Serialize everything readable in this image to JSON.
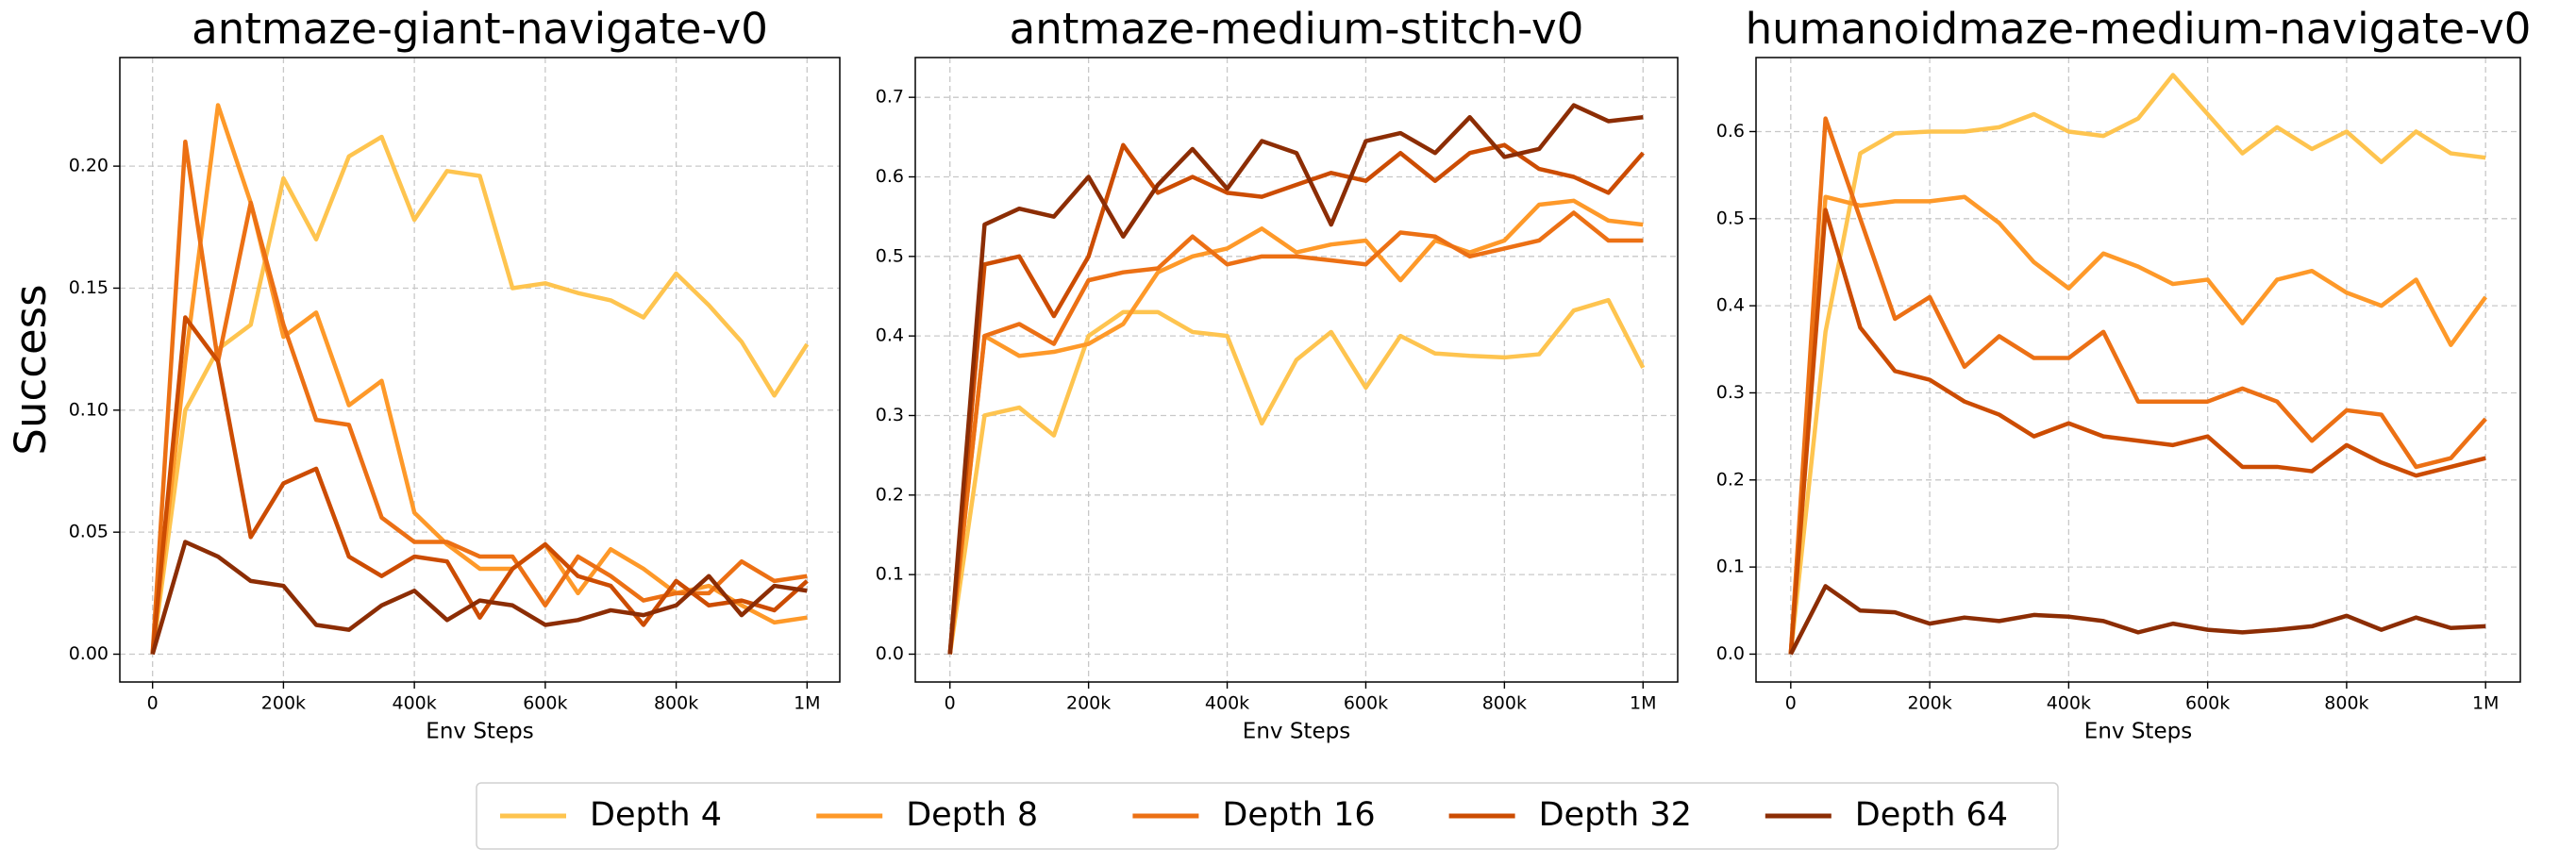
{
  "chart_data": [
    {
      "type": "line",
      "title": "antmaze-giant-navigate-v0",
      "xlabel": "Env Steps",
      "ylabel": "Success",
      "x": [
        0,
        50000,
        100000,
        150000,
        200000,
        250000,
        300000,
        350000,
        400000,
        450000,
        500000,
        550000,
        600000,
        650000,
        700000,
        750000,
        800000,
        850000,
        900000,
        950000,
        1000000
      ],
      "xlim": [
        -50000,
        1050000
      ],
      "xticks": [
        0,
        {
          "value": 200000,
          "label": "200k"
        },
        {
          "value": 400000,
          "label": "400k"
        },
        {
          "value": 600000,
          "label": "600k"
        },
        {
          "value": 800000,
          "label": "800k"
        },
        {
          "value": 1000000,
          "label": "1M"
        }
      ],
      "ylim": [
        -0.0114,
        0.2445
      ],
      "yticks": [
        {
          "value": 0,
          "label": "0.00"
        },
        0.05,
        {
          "value": 0.1,
          "label": "0.10"
        },
        0.15,
        {
          "value": 0.2,
          "label": "0.20"
        }
      ],
      "grid": true,
      "legend": "bottom",
      "series": [
        {
          "name": "Depth 4",
          "color": "#fec44f",
          "values": [
            0,
            0.1,
            0.125,
            0.135,
            0.195,
            0.17,
            0.204,
            0.212,
            0.178,
            0.198,
            0.196,
            0.15,
            0.152,
            0.148,
            0.145,
            0.138,
            0.156,
            0.143,
            0.128,
            0.106,
            0.127
          ]
        },
        {
          "name": "Depth 8",
          "color": "#fe9929",
          "values": [
            0,
            0.12,
            0.225,
            0.185,
            0.13,
            0.14,
            0.102,
            0.112,
            0.058,
            0.045,
            0.035,
            0.035,
            0.045,
            0.025,
            0.043,
            0.035,
            0.025,
            0.028,
            0.02,
            0.013,
            0.015
          ]
        },
        {
          "name": "Depth 16",
          "color": "#ec7014",
          "values": [
            0,
            0.21,
            0.12,
            0.185,
            0.135,
            0.096,
            0.094,
            0.056,
            0.046,
            0.046,
            0.04,
            0.04,
            0.02,
            0.04,
            0.032,
            0.022,
            0.025,
            0.025,
            0.038,
            0.03,
            0.032
          ]
        },
        {
          "name": "Depth 32",
          "color": "#cc4c02",
          "values": [
            0,
            0.138,
            0.12,
            0.048,
            0.07,
            0.076,
            0.04,
            0.032,
            0.04,
            0.038,
            0.015,
            0.035,
            0.045,
            0.032,
            0.028,
            0.012,
            0.03,
            0.02,
            0.022,
            0.018,
            0.03
          ]
        },
        {
          "name": "Depth 64",
          "color": "#8c2d04",
          "values": [
            0,
            0.046,
            0.04,
            0.03,
            0.028,
            0.012,
            0.01,
            0.02,
            0.026,
            0.014,
            0.022,
            0.02,
            0.012,
            0.014,
            0.018,
            0.016,
            0.02,
            0.032,
            0.016,
            0.028,
            0.026
          ]
        }
      ]
    },
    {
      "type": "line",
      "title": "antmaze-medium-stitch-v0",
      "xlabel": "Env Steps",
      "x": [
        0,
        50000,
        100000,
        150000,
        200000,
        250000,
        300000,
        350000,
        400000,
        450000,
        500000,
        550000,
        600000,
        650000,
        700000,
        750000,
        800000,
        850000,
        900000,
        950000,
        1000000
      ],
      "xlim": [
        -50000,
        1050000
      ],
      "xticks": [
        0,
        {
          "value": 200000,
          "label": "200k"
        },
        {
          "value": 400000,
          "label": "400k"
        },
        {
          "value": 600000,
          "label": "600k"
        },
        {
          "value": 800000,
          "label": "800k"
        },
        {
          "value": 1000000,
          "label": "1M"
        }
      ],
      "ylim": [
        -0.035,
        0.75
      ],
      "yticks": [
        {
          "value": 0,
          "label": "0.0"
        },
        0.1,
        0.2,
        0.3,
        0.4,
        0.5,
        0.6,
        0.7
      ],
      "grid": true,
      "series": [
        {
          "color": "#fec44f",
          "values": [
            0,
            0.3,
            0.31,
            0.275,
            0.4,
            0.43,
            0.43,
            0.405,
            0.4,
            0.29,
            0.37,
            0.405,
            0.335,
            0.4,
            0.378,
            0.375,
            0.373,
            0.377,
            0.432,
            0.445,
            0.36
          ]
        },
        {
          "color": "#fe9929",
          "values": [
            0,
            0.4,
            0.375,
            0.38,
            0.39,
            0.415,
            0.48,
            0.5,
            0.51,
            0.535,
            0.505,
            0.515,
            0.52,
            0.47,
            0.52,
            0.505,
            0.52,
            0.565,
            0.57,
            0.545,
            0.54
          ]
        },
        {
          "color": "#ec7014",
          "values": [
            0,
            0.4,
            0.415,
            0.39,
            0.47,
            0.48,
            0.485,
            0.525,
            0.49,
            0.5,
            0.5,
            0.495,
            0.49,
            0.53,
            0.525,
            0.5,
            0.51,
            0.52,
            0.555,
            0.52,
            0.52
          ]
        },
        {
          "color": "#cc4c02",
          "values": [
            0,
            0.49,
            0.5,
            0.425,
            0.5,
            0.64,
            0.58,
            0.6,
            0.58,
            0.575,
            0.59,
            0.605,
            0.595,
            0.63,
            0.595,
            0.63,
            0.64,
            0.61,
            0.6,
            0.58,
            0.63
          ]
        },
        {
          "color": "#8c2d04",
          "values": [
            0,
            0.54,
            0.56,
            0.55,
            0.6,
            0.525,
            0.59,
            0.635,
            0.585,
            0.645,
            0.63,
            0.54,
            0.645,
            0.655,
            0.63,
            0.675,
            0.625,
            0.635,
            0.69,
            0.67,
            0.675
          ]
        }
      ]
    },
    {
      "type": "line",
      "title": "humanoidmaze-medium-navigate-v0",
      "xlabel": "Env Steps",
      "x": [
        0,
        50000,
        100000,
        150000,
        200000,
        250000,
        300000,
        350000,
        400000,
        450000,
        500000,
        550000,
        600000,
        650000,
        700000,
        750000,
        800000,
        850000,
        900000,
        950000,
        1000000
      ],
      "xlim": [
        -50000,
        1050000
      ],
      "xticks": [
        0,
        {
          "value": 200000,
          "label": "200k"
        },
        {
          "value": 400000,
          "label": "400k"
        },
        {
          "value": 600000,
          "label": "600k"
        },
        {
          "value": 800000,
          "label": "800k"
        },
        {
          "value": 1000000,
          "label": "1M"
        }
      ],
      "ylim": [
        -0.032,
        0.685
      ],
      "yticks": [
        {
          "value": 0,
          "label": "0.0"
        },
        0.1,
        0.2,
        0.3,
        0.4,
        0.5,
        0.6
      ],
      "grid": true,
      "series": [
        {
          "color": "#fec44f",
          "values": [
            0,
            0.37,
            0.575,
            0.598,
            0.6,
            0.6,
            0.605,
            0.62,
            0.6,
            0.595,
            0.615,
            0.665,
            0.62,
            0.575,
            0.605,
            0.58,
            0.6,
            0.565,
            0.6,
            0.575,
            0.57
          ]
        },
        {
          "color": "#fe9929",
          "values": [
            0,
            0.525,
            0.515,
            0.52,
            0.52,
            0.525,
            0.495,
            0.45,
            0.42,
            0.46,
            0.445,
            0.425,
            0.43,
            0.38,
            0.43,
            0.44,
            0.415,
            0.4,
            0.43,
            0.355,
            0.41
          ]
        },
        {
          "color": "#ec7014",
          "values": [
            0,
            0.615,
            0.5,
            0.385,
            0.41,
            0.33,
            0.365,
            0.34,
            0.34,
            0.37,
            0.29,
            0.29,
            0.29,
            0.305,
            0.29,
            0.245,
            0.28,
            0.275,
            0.215,
            0.225,
            0.27
          ]
        },
        {
          "color": "#cc4c02",
          "values": [
            0,
            0.51,
            0.375,
            0.325,
            0.315,
            0.29,
            0.275,
            0.25,
            0.265,
            0.25,
            0.245,
            0.24,
            0.25,
            0.215,
            0.215,
            0.21,
            0.24,
            0.22,
            0.205,
            0.215,
            0.225
          ]
        },
        {
          "color": "#8c2d04",
          "values": [
            0,
            0.078,
            0.05,
            0.048,
            0.035,
            0.042,
            0.038,
            0.045,
            0.043,
            0.038,
            0.025,
            0.035,
            0.028,
            0.025,
            0.028,
            0.032,
            0.044,
            0.028,
            0.042,
            0.03,
            0.032
          ]
        }
      ]
    }
  ]
}
